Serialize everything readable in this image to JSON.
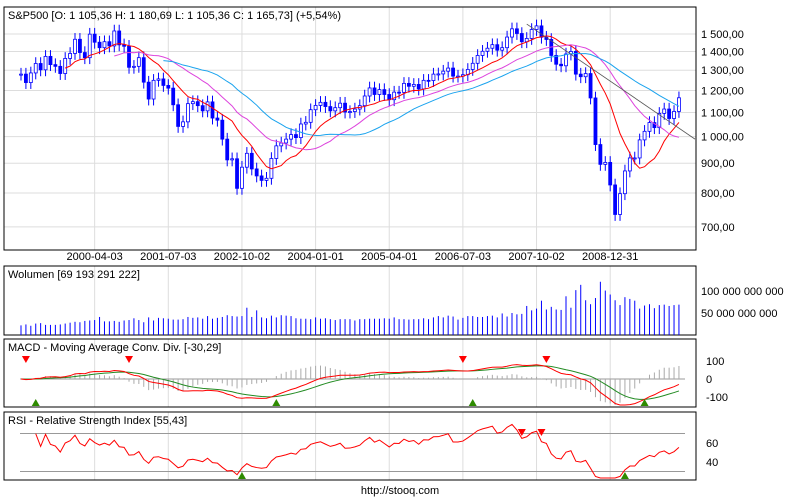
{
  "title": "S&P500 [O: 1 105,36  H: 1 180,69  L: 1 105,36  C: 1 165,73] (+5,54%)",
  "footer": "http://stooq.com",
  "colors": {
    "candle": "#0000ff",
    "ma_fast": "#ff0000",
    "ma_mid": "#dd44dd",
    "ma_slow": "#1aa3ee",
    "trend": "#555555",
    "macd": "#ff0000",
    "signal": "#228b22",
    "grid": "#dddddd",
    "buy": "#2e8b00",
    "sell": "#ff0000"
  },
  "chart_data": [
    {
      "type": "candlestick",
      "title": "S&P500 [O: 1 105,36  H: 1 180,69  L: 1 105,36  C: 1 165,73] (+5,54%)",
      "period": "monthly, 1999-01 to 2010-03",
      "y_scale": "log",
      "ylim": [
        650,
        1600
      ],
      "y_ticks": [
        "1 500,00",
        "1 400,00",
        "1 300,00",
        "1 200,00",
        "1 100,00",
        "1 000,00",
        "900,00",
        "800,00",
        "700,00"
      ],
      "y_tick_values": [
        1500,
        1400,
        1300,
        1200,
        1100,
        1000,
        900,
        800,
        700
      ],
      "x_ticks": [
        "2000-04-03",
        "2001-07-03",
        "2002-10-02",
        "2004-01-01",
        "2005-04-01",
        "2006-07-03",
        "2007-10-02",
        "2008-12-31"
      ],
      "x_tick_index": [
        15,
        30,
        45,
        60,
        75,
        90,
        105,
        120
      ],
      "close": [
        1280,
        1238,
        1286,
        1335,
        1302,
        1373,
        1329,
        1320,
        1283,
        1362,
        1389,
        1469,
        1394,
        1366,
        1499,
        1452,
        1421,
        1455,
        1431,
        1518,
        1437,
        1429,
        1315,
        1320,
        1366,
        1240,
        1160,
        1249,
        1256,
        1224,
        1211,
        1134,
        1041,
        1060,
        1139,
        1148,
        1130,
        1107,
        1147,
        1076,
        1067,
        990,
        912,
        916,
        815,
        886,
        936,
        880,
        856,
        841,
        848,
        917,
        964,
        975,
        990,
        1008,
        996,
        1051,
        1058,
        1112,
        1131,
        1145,
        1126,
        1107,
        1121,
        1141,
        1102,
        1104,
        1115,
        1130,
        1174,
        1212,
        1181,
        1204,
        1181,
        1157,
        1192,
        1191,
        1234,
        1220,
        1229,
        1207,
        1249,
        1248,
        1280,
        1281,
        1295,
        1311,
        1270,
        1270,
        1277,
        1304,
        1336,
        1378,
        1401,
        1418,
        1438,
        1407,
        1421,
        1482,
        1531,
        1503,
        1455,
        1474,
        1527,
        1549,
        1481,
        1468,
        1378,
        1331,
        1323,
        1386,
        1400,
        1280,
        1267,
        1283,
        1165,
        969,
        896,
        903,
        826,
        735,
        798,
        873,
        919,
        919,
        987,
        1021,
        1057,
        1036,
        1096,
        1115,
        1074,
        1104.49,
        1165.73
      ],
      "last": {
        "open": 1105.36,
        "high": 1180.69,
        "low": 1105.36,
        "close": 1165.73,
        "change_pct": 5.54
      },
      "moving_averages": [
        10,
        20,
        30
      ]
    },
    {
      "type": "bar",
      "title": "Wolumen [69 193 291 222]",
      "y_ticks": [
        "100 000 000 000",
        "50 000 000 000"
      ],
      "y_tick_values": [
        100,
        50
      ],
      "unit": "billions",
      "values": [
        22,
        24,
        21,
        26,
        27,
        23,
        23,
        23,
        24,
        26,
        28,
        30,
        29,
        32,
        33,
        34,
        41,
        31,
        31,
        32,
        30,
        33,
        34,
        38,
        34,
        29,
        40,
        33,
        39,
        38,
        37,
        35,
        35,
        36,
        41,
        39,
        40,
        37,
        43,
        37,
        39,
        41,
        45,
        43,
        42,
        43,
        62,
        41,
        56,
        40,
        38,
        44,
        40,
        45,
        44,
        43,
        38,
        37,
        37,
        36,
        40,
        37,
        38,
        36,
        34,
        36,
        36,
        36,
        33,
        36,
        36,
        37,
        37,
        37,
        38,
        37,
        40,
        36,
        36,
        35,
        36,
        36,
        38,
        36,
        40,
        43,
        40,
        44,
        42,
        35,
        39,
        43,
        43,
        41,
        41,
        43,
        44,
        40,
        49,
        42,
        50,
        47,
        48,
        66,
        56,
        60,
        78,
        58,
        64,
        58,
        57,
        88,
        62,
        102,
        114,
        79,
        70,
        84,
        121,
        101,
        92,
        79,
        68,
        86,
        82,
        78,
        60,
        67,
        70,
        61,
        68,
        69,
        66,
        68,
        69
      ]
    },
    {
      "type": "line",
      "title": "MACD - Moving Average Conv. Div. [-30,29]",
      "y_ticks": [
        "100",
        "0",
        "-100"
      ],
      "y_tick_values": [
        100,
        0,
        -100
      ],
      "series": [
        {
          "name": "MACD",
          "params": [
            12,
            26
          ]
        },
        {
          "name": "Signal",
          "params": [
            9
          ]
        }
      ]
    },
    {
      "type": "line",
      "title": "RSI - Relative Strength Index [55,43]",
      "y_ticks": [
        "60",
        "40"
      ],
      "y_tick_values": [
        60,
        40
      ],
      "bands": [
        30,
        70
      ],
      "period": 14
    }
  ]
}
